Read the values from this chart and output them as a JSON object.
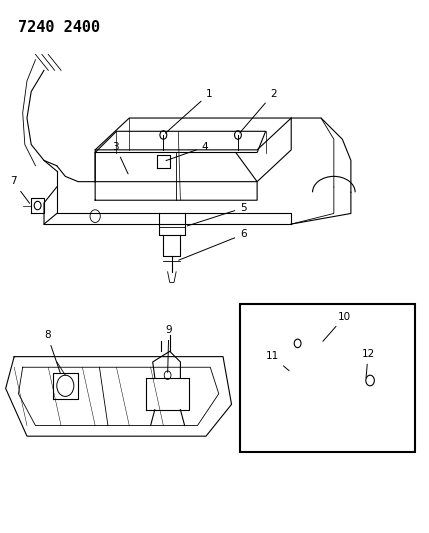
{
  "title": "7240 2400",
  "background_color": "#ffffff",
  "line_color": "#000000",
  "title_fontsize": 11
}
